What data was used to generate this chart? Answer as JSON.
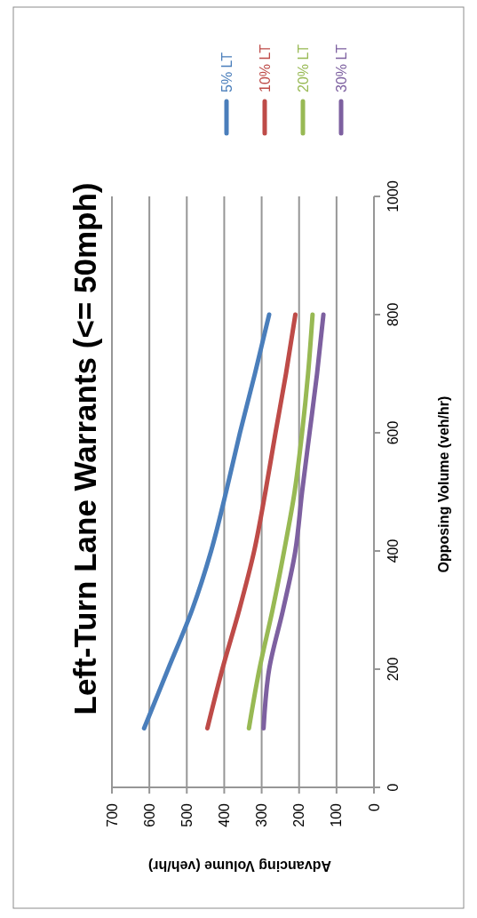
{
  "chart_data": {
    "type": "line",
    "title": "Left-Turn Lane Warrants (<= 50mph)",
    "xlabel": "Advancing Volume (veh/hr)",
    "ylabel": "Opposing Volume (veh/hr)",
    "series": [
      {
        "name": "5% LT",
        "color": "#4a7ebb",
        "x": [
          614,
          550,
          486,
          435,
          395,
          358,
          318,
          280
        ],
        "values": [
          100,
          200,
          300,
          400,
          500,
          600,
          700,
          800
        ]
      },
      {
        "name": "10% LT",
        "color": "#be4b48",
        "x": [
          445,
          405,
          360,
          320,
          290,
          263,
          235,
          210
        ],
        "values": [
          100,
          200,
          300,
          400,
          500,
          600,
          700,
          800
        ]
      },
      {
        "name": "20% LT",
        "color": "#98b954",
        "x": [
          334,
          306,
          271,
          240,
          212,
          192,
          176,
          164
        ],
        "values": [
          100,
          200,
          300,
          400,
          500,
          600,
          700,
          800
        ]
      },
      {
        "name": "30% LT",
        "color": "#7d60a0",
        "x": [
          295,
          280,
          243,
          210,
          192,
          172,
          152,
          135
        ],
        "values": [
          100,
          200,
          300,
          400,
          500,
          600,
          700,
          800
        ]
      }
    ],
    "xlim": [
      700,
      0
    ],
    "xticks": [
      700,
      600,
      500,
      400,
      300,
      200,
      100,
      0
    ],
    "ylim": [
      0,
      1000
    ],
    "yticks": [
      0,
      200,
      400,
      600,
      800,
      1000
    ],
    "grid": "x",
    "legend": "top right",
    "marker": "none",
    "line_style": "solid"
  }
}
